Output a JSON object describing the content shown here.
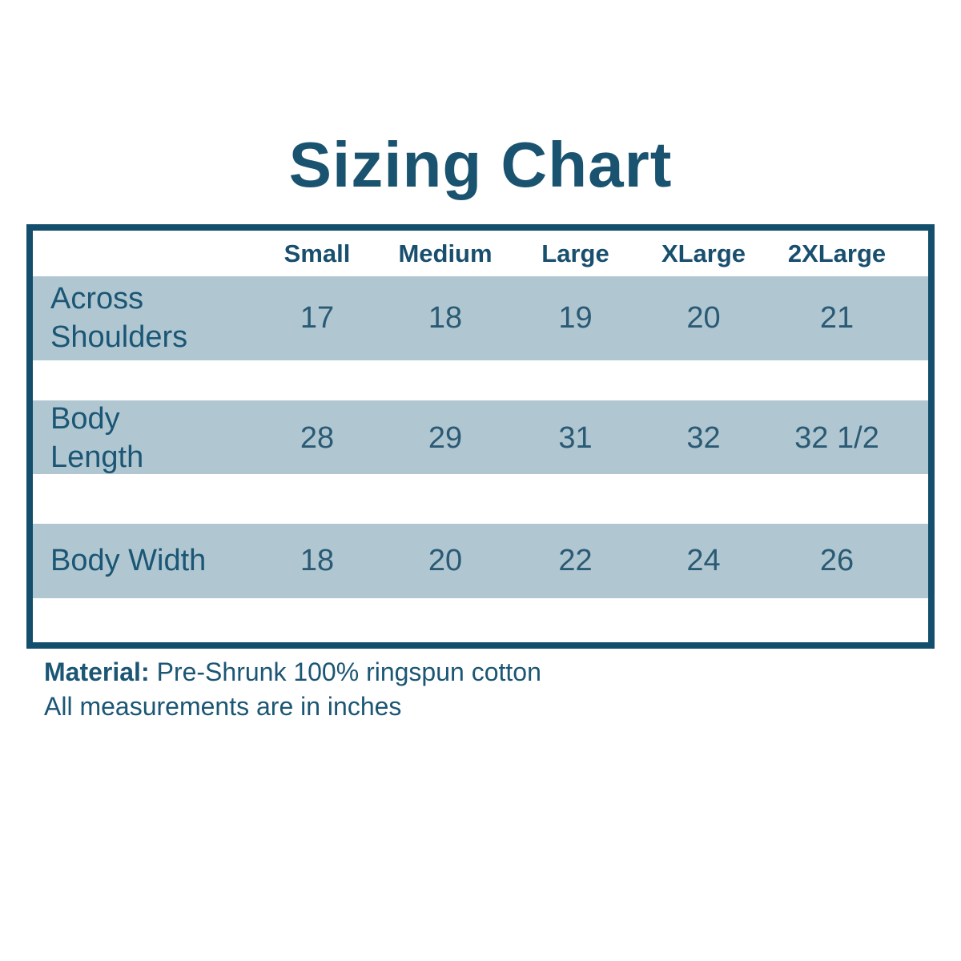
{
  "title": "Sizing Chart",
  "table": {
    "columns": [
      "Small",
      "Medium",
      "Large",
      "XLarge",
      "2XLarge"
    ],
    "rows": [
      {
        "label": "Across Shoulders",
        "values": [
          "17",
          "18",
          "19",
          "20",
          "21"
        ]
      },
      {
        "label": "Body Length",
        "values": [
          "28",
          "29",
          "31",
          "32",
          "32 1/2"
        ]
      },
      {
        "label": "Body Width",
        "values": [
          "18",
          "20",
          "22",
          "24",
          "26"
        ]
      }
    ]
  },
  "footer": {
    "material_label": "Material:",
    "material_value": "Pre-Shrunk 100% ringspun cotton",
    "note": "All measurements are in inches"
  },
  "colors": {
    "accent_text": "#1b5674",
    "table_border": "#134f6d",
    "row_band": "#b0c7d2",
    "background": "#ffffff"
  },
  "chart_data": {
    "type": "table",
    "title": "Sizing Chart",
    "columns": [
      "",
      "Small",
      "Medium",
      "Large",
      "XLarge",
      "2XLarge"
    ],
    "rows": [
      [
        "Across Shoulders",
        17,
        18,
        19,
        20,
        21
      ],
      [
        "Body Length",
        28,
        29,
        31,
        32,
        "32 1/2"
      ],
      [
        "Body Width",
        18,
        20,
        22,
        24,
        26
      ]
    ],
    "units": "inches",
    "notes": [
      "Material: Pre-Shrunk 100% ringspun cotton",
      "All measurements are in inches"
    ],
    "layout_hints": {
      "striped_rows": true,
      "band_color": "#b0c7d2",
      "border_color": "#134f6d",
      "header_position": "top"
    }
  }
}
